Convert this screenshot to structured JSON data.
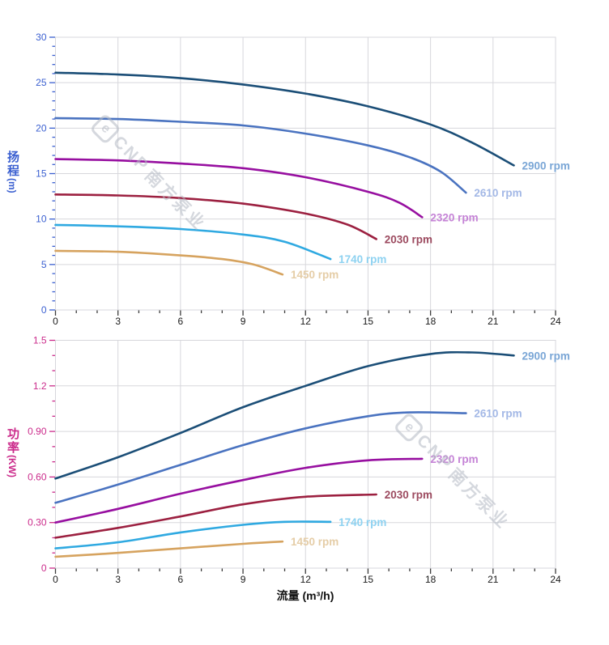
{
  "watermark": {
    "logo_letter": "e",
    "brand": "CNP",
    "company": "南方泵业",
    "color": "#b4bac4"
  },
  "grid_color": "#d7d7dc",
  "x_axis": {
    "title": "流量 (m³/h)",
    "range": [
      0,
      24
    ],
    "tick_values": [
      0,
      3,
      6,
      9,
      12,
      15,
      18,
      21,
      24
    ],
    "tick_labels": [
      "0",
      "3",
      "6",
      "9",
      "12",
      "15",
      "18",
      "21",
      "24"
    ],
    "minor_step": 1,
    "tick_color": "#3c3c3c",
    "label_color": "#1a1a1a"
  },
  "chart_data": [
    {
      "type": "line",
      "name": "head-curves",
      "ylabel": "扬程",
      "y_unit": "(m)",
      "xlabel": "流量 (m³/h)",
      "ylim": [
        0,
        30
      ],
      "y_tick_values": [
        0,
        5,
        10,
        15,
        20,
        25,
        30
      ],
      "y_tick_labels": [
        "0",
        "5",
        "10",
        "15",
        "20",
        "25",
        "30"
      ],
      "y_minor_step": 1,
      "axis_color": "#3a5fd0",
      "legend_position": "at-curve-end",
      "grid": true,
      "series": [
        {
          "name": "2900 rpm",
          "rpm": 2900,
          "color": "#1b4e77",
          "label_color": "#7aa6d6",
          "points": [
            [
              0,
              26.1
            ],
            [
              3,
              25.9
            ],
            [
              6,
              25.5
            ],
            [
              9,
              24.8
            ],
            [
              12,
              23.8
            ],
            [
              15,
              22.4
            ],
            [
              18,
              20.4
            ],
            [
              20,
              18.4
            ],
            [
              22,
              15.9
            ]
          ]
        },
        {
          "name": "2610 rpm",
          "rpm": 2610,
          "color": "#4a73c0",
          "label_color": "#a3b8e6",
          "points": [
            [
              0,
              21.1
            ],
            [
              3,
              21.0
            ],
            [
              6,
              20.7
            ],
            [
              9,
              20.3
            ],
            [
              12,
              19.4
            ],
            [
              15,
              18.1
            ],
            [
              17,
              16.8
            ],
            [
              18.5,
              15.2
            ],
            [
              19.7,
              12.9
            ]
          ]
        },
        {
          "name": "2320 rpm",
          "rpm": 2320,
          "color": "#970fa0",
          "label_color": "#c583d6",
          "points": [
            [
              0,
              16.6
            ],
            [
              3,
              16.45
            ],
            [
              6,
              16.1
            ],
            [
              9,
              15.6
            ],
            [
              12,
              14.6
            ],
            [
              15,
              13.0
            ],
            [
              16.5,
              11.8
            ],
            [
              17.6,
              10.2
            ]
          ]
        },
        {
          "name": "2030 rpm",
          "rpm": 2030,
          "color": "#9c2040",
          "label_color": "#9c4a5f",
          "points": [
            [
              0,
              12.7
            ],
            [
              3,
              12.6
            ],
            [
              6,
              12.3
            ],
            [
              9,
              11.7
            ],
            [
              12,
              10.6
            ],
            [
              14,
              9.4
            ],
            [
              15.4,
              7.8
            ]
          ]
        },
        {
          "name": "1740 rpm",
          "rpm": 1740,
          "color": "#2fa9e1",
          "label_color": "#8ed2f1",
          "points": [
            [
              0,
              9.35
            ],
            [
              3,
              9.2
            ],
            [
              6,
              8.9
            ],
            [
              9,
              8.3
            ],
            [
              11,
              7.5
            ],
            [
              13.2,
              5.6
            ]
          ]
        },
        {
          "name": "1450 rpm",
          "rpm": 1450,
          "color": "#d6a35f",
          "label_color": "#e5cda7",
          "points": [
            [
              0,
              6.5
            ],
            [
              3,
              6.4
            ],
            [
              6,
              6.0
            ],
            [
              8,
              5.6
            ],
            [
              9.5,
              5.0
            ],
            [
              10.9,
              3.9
            ]
          ]
        }
      ]
    },
    {
      "type": "line",
      "name": "power-curves",
      "ylabel": "功率",
      "y_unit": "(KW)",
      "xlabel": "流量 (m³/h)",
      "ylim": [
        0,
        1.5
      ],
      "y_tick_values": [
        0,
        0.3,
        0.6,
        0.9,
        1.2,
        1.5
      ],
      "y_tick_labels": [
        "0",
        "0.30",
        "0.60",
        "0.90",
        "1.2",
        "1.5"
      ],
      "y_minor_step": 0.1,
      "axis_color": "#cb2b8b",
      "legend_position": "at-curve-end",
      "grid": true,
      "series": [
        {
          "name": "2900 rpm",
          "rpm": 2900,
          "color": "#1b4e77",
          "label_color": "#7aa6d6",
          "points": [
            [
              0,
              0.59
            ],
            [
              3,
              0.73
            ],
            [
              6,
              0.89
            ],
            [
              9,
              1.06
            ],
            [
              12,
              1.2
            ],
            [
              15,
              1.33
            ],
            [
              18,
              1.41
            ],
            [
              20,
              1.42
            ],
            [
              22,
              1.4
            ]
          ]
        },
        {
          "name": "2610 rpm",
          "rpm": 2610,
          "color": "#4a73c0",
          "label_color": "#a3b8e6",
          "points": [
            [
              0,
              0.43
            ],
            [
              3,
              0.55
            ],
            [
              6,
              0.68
            ],
            [
              9,
              0.81
            ],
            [
              12,
              0.92
            ],
            [
              15,
              1.0
            ],
            [
              17,
              1.025
            ],
            [
              19.7,
              1.02
            ]
          ]
        },
        {
          "name": "2320 rpm",
          "rpm": 2320,
          "color": "#970fa0",
          "label_color": "#c583d6",
          "points": [
            [
              0,
              0.3
            ],
            [
              3,
              0.39
            ],
            [
              6,
              0.49
            ],
            [
              9,
              0.58
            ],
            [
              12,
              0.66
            ],
            [
              15,
              0.71
            ],
            [
              17.6,
              0.72
            ]
          ]
        },
        {
          "name": "2030 rpm",
          "rpm": 2030,
          "color": "#9c2040",
          "label_color": "#9c4a5f",
          "points": [
            [
              0,
              0.2
            ],
            [
              3,
              0.265
            ],
            [
              6,
              0.34
            ],
            [
              9,
              0.42
            ],
            [
              12,
              0.47
            ],
            [
              15.4,
              0.485
            ]
          ]
        },
        {
          "name": "1740 rpm",
          "rpm": 1740,
          "color": "#2fa9e1",
          "label_color": "#8ed2f1",
          "points": [
            [
              0,
              0.13
            ],
            [
              3,
              0.17
            ],
            [
              6,
              0.235
            ],
            [
              9,
              0.285
            ],
            [
              11,
              0.305
            ],
            [
              13.2,
              0.305
            ]
          ]
        },
        {
          "name": "1450 rpm",
          "rpm": 1450,
          "color": "#d6a35f",
          "label_color": "#e5cda7",
          "points": [
            [
              0,
              0.075
            ],
            [
              3,
              0.1
            ],
            [
              6,
              0.13
            ],
            [
              9,
              0.16
            ],
            [
              10.9,
              0.175
            ]
          ]
        }
      ]
    }
  ]
}
